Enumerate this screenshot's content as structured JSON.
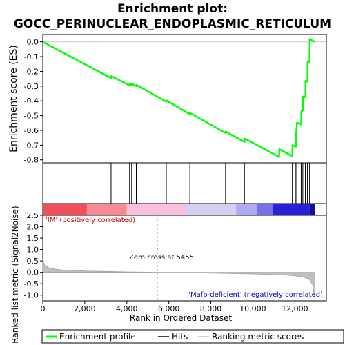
{
  "chart_data": {
    "type": "line",
    "title_line1": "Enrichment plot:",
    "title_line2": "GOCC_PERINUCLEAR_ENDOPLASMIC_RETICULUM",
    "top_ylabel": "Enrichment score (ES)",
    "bottom_ylabel_line1": "Ranked list metric (Signal2Noise)",
    "xlabel": "Rank in Ordered Dataset",
    "xlim": [
      0,
      13500
    ],
    "es_ylim": [
      -0.82,
      0.05
    ],
    "metric_ylim": [
      -1.25,
      2.5
    ],
    "x_ticks": [
      0,
      2000,
      4000,
      6000,
      8000,
      10000,
      12000
    ],
    "x_tick_labels": [
      "0",
      "2,000",
      "4,000",
      "6,000",
      "8,000",
      "10,000",
      "12,000"
    ],
    "es_ticks": [
      0.0,
      -0.1,
      -0.2,
      -0.3,
      -0.4,
      -0.5,
      -0.6,
      -0.7,
      -0.8
    ],
    "es_tick_labels": [
      "0.0",
      "-0.1",
      "-0.2",
      "-0.3",
      "-0.4",
      "-0.5",
      "-0.6",
      "-0.7",
      "-0.8"
    ],
    "metric_ticks": [
      2.5,
      2.0,
      1.5,
      1.0,
      0.5,
      0.0,
      -0.5,
      -1.0
    ],
    "metric_tick_labels": [
      "2.5",
      "2.0",
      "1.5",
      "1.0",
      "0.5",
      "0.0",
      "-0.5",
      "-1.0"
    ],
    "hits": [
      3250,
      4130,
      4230,
      4450,
      5880,
      7000,
      8700,
      9600,
      11250,
      11880,
      12050,
      12100,
      12300,
      12380,
      12500,
      12600,
      12700
    ],
    "enrichment_profile": {
      "name": "Enrichment profile",
      "x": [
        0,
        3250,
        3260,
        4130,
        4140,
        4230,
        4240,
        4450,
        4460,
        5880,
        5890,
        7000,
        7010,
        8700,
        8710,
        9600,
        9610,
        11250,
        11260,
        11880,
        11890,
        12050,
        12060,
        12100,
        12110,
        12300,
        12310,
        12380,
        12390,
        12500,
        12510,
        12600,
        12610,
        12700,
        12710,
        12950
      ],
      "y": [
        0.0,
        -0.245,
        -0.232,
        -0.295,
        -0.285,
        -0.292,
        -0.284,
        -0.3,
        -0.292,
        -0.405,
        -0.397,
        -0.49,
        -0.482,
        -0.618,
        -0.609,
        -0.678,
        -0.655,
        -0.78,
        -0.727,
        -0.775,
        -0.7,
        -0.71,
        -0.625,
        -0.55,
        -0.548,
        -0.56,
        -0.47,
        -0.465,
        -0.37,
        -0.375,
        -0.265,
        -0.27,
        -0.135,
        -0.135,
        0.02,
        0.0
      ]
    },
    "ranking_metric": {
      "name": "Ranking metric scores",
      "x": [
        0,
        100,
        300,
        600,
        1000,
        2000,
        3000,
        4000,
        5455,
        6000,
        7000,
        8000,
        9000,
        10000,
        11000,
        11500,
        12000,
        12400,
        12700,
        12850,
        12950
      ],
      "y": [
        0.55,
        0.3,
        0.2,
        0.14,
        0.1,
        0.06,
        0.04,
        0.02,
        0.0,
        -0.01,
        -0.02,
        -0.03,
        -0.05,
        -0.07,
        -0.1,
        -0.12,
        -0.15,
        -0.2,
        -0.32,
        -0.55,
        -1.2
      ]
    },
    "zero_cross_x": 5455,
    "annotations": {
      "positive": "'IM' (positively correlated)",
      "zero_cross": "Zero cross at 5455",
      "negative": "'Mafb-deficient' (negatively correlated)"
    },
    "legend": {
      "enrichment": "Enrichment profile",
      "hits": "Hits",
      "ranking": "Ranking metric scores"
    },
    "colors": {
      "enrichment": "#00ff00",
      "hits": "#000000",
      "ranking": "#c0c0c0",
      "zero_line": "#c8c8c8",
      "positive_text": "#cc0000",
      "negative_text": "#0000cc"
    },
    "heatmap_segments": [
      {
        "x0": 0,
        "x1": 2100,
        "color": "#f0505a"
      },
      {
        "x0": 2100,
        "x1": 4000,
        "color": "#f88a96"
      },
      {
        "x0": 4000,
        "x1": 6800,
        "color": "#f8c0dc"
      },
      {
        "x0": 6800,
        "x1": 9200,
        "color": "#d4d0f4"
      },
      {
        "x0": 9200,
        "x1": 10200,
        "color": "#b0aaf0"
      },
      {
        "x0": 10200,
        "x1": 10950,
        "color": "#7a70ea"
      },
      {
        "x0": 10950,
        "x1": 12700,
        "color": "#2a20d8"
      },
      {
        "x0": 12700,
        "x1": 12950,
        "color": "#1010a0"
      }
    ]
  }
}
